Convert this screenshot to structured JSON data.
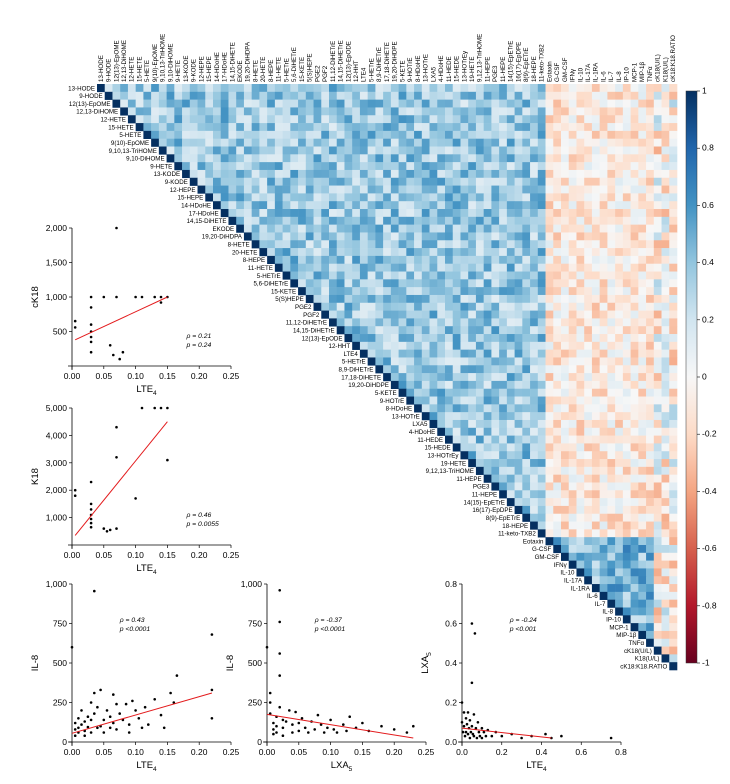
{
  "chart_data": [
    {
      "type": "heatmap",
      "variables": [
        "13-HODE",
        "9-HODE",
        "12(13)-EpOME",
        "12,13-DiHOME",
        "12-HETE",
        "15-HETE",
        "5-HETE",
        "9(10)-EpOME",
        "9,10,13-TriHOME",
        "9,10-DiHOME",
        "9-HETE",
        "13-KODE",
        "9-KODE",
        "12-HEPE",
        "15-HEPE",
        "14-HDoHE",
        "17-HDoHE",
        "14,15-DiHETE",
        "EKODE",
        "19,20-DiHDPA",
        "8-HETE",
        "20-HETE",
        "8-HEPE",
        "11-HETE",
        "5-HETrE",
        "5,6-DiHETrE",
        "15-KETE",
        "5(S)HEPE",
        "PGE2",
        "PGF2",
        "11,12-DiHETrE",
        "14,15-DiHETrE",
        "12(13)-EpODE",
        "12-HHT",
        "LTE4",
        "5-HETrE",
        "8,9-DiHETrE",
        "17,18-DiHETE",
        "19,20-DiHDPE",
        "5-KETE",
        "9-HOTrE",
        "8-HDoHE",
        "13-HOTrE",
        "LXA5",
        "4-HDoHE",
        "11-HEDE",
        "15-HEDE",
        "13-HOTrEy",
        "19-HETE",
        "9,12,13-TriHOME",
        "11-HEPE",
        "PGE3",
        "11-HEPE",
        "14(15)-EpETrE",
        "16(17)-EpDPE",
        "8(9)-EpETrE",
        "18-HEPE",
        "11-keto-TXB2",
        "Eotaxin",
        "G-CSF",
        "GM-CSF",
        "IFNγ",
        "IL-10",
        "IL-17A",
        "IL-1RA",
        "IL-6",
        "IL-7",
        "IL-8",
        "IP-10",
        "MCP-1",
        "MIP-1β",
        "TNFα",
        "cK18(U/L)",
        "K18(U/L)",
        "cK18:K18.RATIO"
      ],
      "color_scale": {
        "min": -1,
        "max": 1,
        "ticks": [
          1,
          0.8,
          0.6,
          0.4,
          0.2,
          0,
          -0.2,
          -0.4,
          -0.6,
          -0.8,
          -1
        ],
        "low_color": "#67001f",
        "mid_color": "#f7f7f7",
        "high_color": "#053061"
      }
    },
    {
      "type": "scatter",
      "xlabel": "LTE",
      "xlabel_sub": "4",
      "ylabel": "cK18",
      "xlim": [
        0,
        0.25
      ],
      "ylim": [
        0,
        2000
      ],
      "xticks": [
        "0.00",
        "0.05",
        "0.10",
        "0.15",
        "0.20",
        "0.25"
      ],
      "yticks": [
        "500",
        "1,000",
        "1,500",
        "2,000"
      ],
      "stats": [
        "ρ = 0.21",
        "p = 0.24"
      ],
      "points": [
        [
          0.005,
          650
        ],
        [
          0.005,
          560
        ],
        [
          0.03,
          1000
        ],
        [
          0.03,
          850
        ],
        [
          0.03,
          600
        ],
        [
          0.03,
          500
        ],
        [
          0.03,
          420
        ],
        [
          0.03,
          350
        ],
        [
          0.03,
          200
        ],
        [
          0.05,
          1000
        ],
        [
          0.06,
          300
        ],
        [
          0.065,
          160
        ],
        [
          0.07,
          1000
        ],
        [
          0.07,
          2000
        ],
        [
          0.075,
          100
        ],
        [
          0.08,
          200
        ],
        [
          0.1,
          1000
        ],
        [
          0.11,
          1000
        ],
        [
          0.13,
          1000
        ],
        [
          0.14,
          1000
        ],
        [
          0.15,
          1000
        ],
        [
          0.14,
          920
        ]
      ],
      "fit": [
        [
          0.005,
          380
        ],
        [
          0.15,
          1000
        ]
      ]
    },
    {
      "type": "scatter",
      "xlabel": "LTE",
      "xlabel_sub": "4",
      "ylabel": "K18",
      "xlim": [
        0,
        0.25
      ],
      "ylim": [
        0,
        5000
      ],
      "xticks": [
        "0.00",
        "0.05",
        "0.10",
        "0.15",
        "0.20",
        "0.25"
      ],
      "yticks": [
        "1,000",
        "2,000",
        "3,000",
        "4,000",
        "5,000"
      ],
      "stats": [
        "ρ = 0.46",
        "p = 0.0055"
      ],
      "points": [
        [
          0.005,
          2000
        ],
        [
          0.005,
          1800
        ],
        [
          0.03,
          2300
        ],
        [
          0.03,
          1500
        ],
        [
          0.03,
          1300
        ],
        [
          0.03,
          1100
        ],
        [
          0.03,
          950
        ],
        [
          0.03,
          800
        ],
        [
          0.03,
          650
        ],
        [
          0.05,
          600
        ],
        [
          0.055,
          500
        ],
        [
          0.06,
          550
        ],
        [
          0.07,
          4300
        ],
        [
          0.07,
          3200
        ],
        [
          0.07,
          600
        ],
        [
          0.1,
          1700
        ],
        [
          0.11,
          5000
        ],
        [
          0.13,
          5000
        ],
        [
          0.14,
          5000
        ],
        [
          0.15,
          5000
        ],
        [
          0.15,
          3100
        ]
      ],
      "fit": [
        [
          0.005,
          350
        ],
        [
          0.15,
          4500
        ]
      ]
    },
    {
      "type": "scatter",
      "xlabel": "LTE",
      "xlabel_sub": "4",
      "ylabel": "IL-8",
      "xlim": [
        0,
        0.25
      ],
      "ylim": [
        0,
        1000
      ],
      "xticks": [
        "0.00",
        "0.05",
        "0.10",
        "0.15",
        "0.20",
        "0.25"
      ],
      "yticks": [
        "0",
        "250",
        "500",
        "750",
        "1,000"
      ],
      "stats": [
        "ρ = 0.43",
        "p <0.0001"
      ],
      "points": [
        [
          0.0,
          600
        ],
        [
          0.005,
          120
        ],
        [
          0.005,
          80
        ],
        [
          0.005,
          40
        ],
        [
          0.01,
          150
        ],
        [
          0.01,
          90
        ],
        [
          0.01,
          60
        ],
        [
          0.015,
          110
        ],
        [
          0.015,
          200
        ],
        [
          0.02,
          130
        ],
        [
          0.02,
          70
        ],
        [
          0.02,
          40
        ],
        [
          0.025,
          160
        ],
        [
          0.025,
          95
        ],
        [
          0.03,
          250
        ],
        [
          0.03,
          140
        ],
        [
          0.03,
          60
        ],
        [
          0.035,
          955
        ],
        [
          0.035,
          310
        ],
        [
          0.035,
          180
        ],
        [
          0.04,
          90
        ],
        [
          0.04,
          220
        ],
        [
          0.045,
          330
        ],
        [
          0.045,
          100
        ],
        [
          0.05,
          140
        ],
        [
          0.05,
          60
        ],
        [
          0.055,
          200
        ],
        [
          0.06,
          160
        ],
        [
          0.06,
          90
        ],
        [
          0.065,
          300
        ],
        [
          0.065,
          120
        ],
        [
          0.07,
          240
        ],
        [
          0.07,
          80
        ],
        [
          0.075,
          180
        ],
        [
          0.08,
          140
        ],
        [
          0.085,
          240
        ],
        [
          0.09,
          110
        ],
        [
          0.09,
          60
        ],
        [
          0.095,
          260
        ],
        [
          0.1,
          200
        ],
        [
          0.105,
          150
        ],
        [
          0.11,
          90
        ],
        [
          0.115,
          220
        ],
        [
          0.12,
          110
        ],
        [
          0.13,
          270
        ],
        [
          0.14,
          170
        ],
        [
          0.145,
          90
        ],
        [
          0.155,
          310
        ],
        [
          0.16,
          250
        ],
        [
          0.165,
          420
        ],
        [
          0.22,
          680
        ],
        [
          0.22,
          330
        ],
        [
          0.22,
          150
        ]
      ],
      "fit": [
        [
          0.0,
          55
        ],
        [
          0.22,
          310
        ]
      ]
    },
    {
      "type": "scatter",
      "xlabel": "LXA",
      "xlabel_sub": "5",
      "ylabel": "IL-8",
      "xlim": [
        0,
        0.25
      ],
      "ylim": [
        0,
        1000
      ],
      "xticks": [
        "0.00",
        "0.05",
        "0.10",
        "0.15",
        "0.20",
        "0.25"
      ],
      "yticks": [
        "0",
        "250",
        "500",
        "750",
        "1,000"
      ],
      "stats": [
        "ρ = -0.37",
        "p <0.0001"
      ],
      "points": [
        [
          0.0,
          600
        ],
        [
          0.005,
          310
        ],
        [
          0.005,
          250
        ],
        [
          0.005,
          180
        ],
        [
          0.01,
          120
        ],
        [
          0.01,
          80
        ],
        [
          0.01,
          50
        ],
        [
          0.015,
          160
        ],
        [
          0.015,
          100
        ],
        [
          0.015,
          60
        ],
        [
          0.02,
          960
        ],
        [
          0.02,
          760
        ],
        [
          0.02,
          560
        ],
        [
          0.02,
          420
        ],
        [
          0.02,
          220
        ],
        [
          0.025,
          140
        ],
        [
          0.025,
          90
        ],
        [
          0.025,
          40
        ],
        [
          0.03,
          130
        ],
        [
          0.035,
          200
        ],
        [
          0.04,
          110
        ],
        [
          0.04,
          60
        ],
        [
          0.045,
          190
        ],
        [
          0.05,
          120
        ],
        [
          0.05,
          70
        ],
        [
          0.055,
          150
        ],
        [
          0.06,
          90
        ],
        [
          0.065,
          60
        ],
        [
          0.07,
          130
        ],
        [
          0.075,
          80
        ],
        [
          0.08,
          170
        ],
        [
          0.085,
          110
        ],
        [
          0.09,
          60
        ],
        [
          0.095,
          90
        ],
        [
          0.1,
          140
        ],
        [
          0.105,
          80
        ],
        [
          0.11,
          60
        ],
        [
          0.12,
          110
        ],
        [
          0.125,
          70
        ],
        [
          0.13,
          160
        ],
        [
          0.14,
          90
        ],
        [
          0.15,
          120
        ],
        [
          0.16,
          70
        ],
        [
          0.18,
          100
        ],
        [
          0.2,
          80
        ],
        [
          0.22,
          60
        ],
        [
          0.23,
          100
        ]
      ],
      "fit": [
        [
          0.0,
          175
        ],
        [
          0.23,
          25
        ]
      ]
    },
    {
      "type": "scatter",
      "xlabel": "LTE",
      "xlabel_sub": "4",
      "ylabel": "LXA",
      "ylabel_sub": "5",
      "xlim": [
        0,
        0.8
      ],
      "ylim": [
        0,
        0.8
      ],
      "xticks": [
        "0.0",
        "0.2",
        "0.4",
        "0.6",
        "0.8"
      ],
      "yticks": [
        "0.0",
        "0.2",
        "0.4",
        "0.6",
        "0.8"
      ],
      "stats": [
        "ρ = -0.24",
        "p <0.001"
      ],
      "points": [
        [
          0.0,
          0.2
        ],
        [
          0.0,
          0.1
        ],
        [
          0.005,
          0.05
        ],
        [
          0.01,
          0.15
        ],
        [
          0.01,
          0.08
        ],
        [
          0.015,
          0.03
        ],
        [
          0.02,
          0.12
        ],
        [
          0.02,
          0.05
        ],
        [
          0.025,
          0.09
        ],
        [
          0.03,
          0.04
        ],
        [
          0.03,
          0.15
        ],
        [
          0.035,
          0.07
        ],
        [
          0.04,
          0.02
        ],
        [
          0.04,
          0.11
        ],
        [
          0.045,
          0.05
        ],
        [
          0.05,
          0.6
        ],
        [
          0.05,
          0.3
        ],
        [
          0.05,
          0.08
        ],
        [
          0.055,
          0.04
        ],
        [
          0.06,
          0.14
        ],
        [
          0.06,
          0.03
        ],
        [
          0.065,
          0.55
        ],
        [
          0.07,
          0.07
        ],
        [
          0.075,
          0.02
        ],
        [
          0.08,
          0.1
        ],
        [
          0.085,
          0.05
        ],
        [
          0.09,
          0.03
        ],
        [
          0.1,
          0.07
        ],
        [
          0.1,
          0.02
        ],
        [
          0.11,
          0.05
        ],
        [
          0.12,
          0.03
        ],
        [
          0.13,
          0.06
        ],
        [
          0.15,
          0.03
        ],
        [
          0.17,
          0.05
        ],
        [
          0.2,
          0.03
        ],
        [
          0.25,
          0.04
        ],
        [
          0.3,
          0.02
        ],
        [
          0.35,
          0.03
        ],
        [
          0.42,
          0.04
        ],
        [
          0.45,
          0.02
        ],
        [
          0.5,
          0.03
        ],
        [
          0.75,
          0.02
        ]
      ],
      "fit": [
        [
          0.0,
          0.07
        ],
        [
          0.45,
          0.02
        ]
      ]
    }
  ]
}
